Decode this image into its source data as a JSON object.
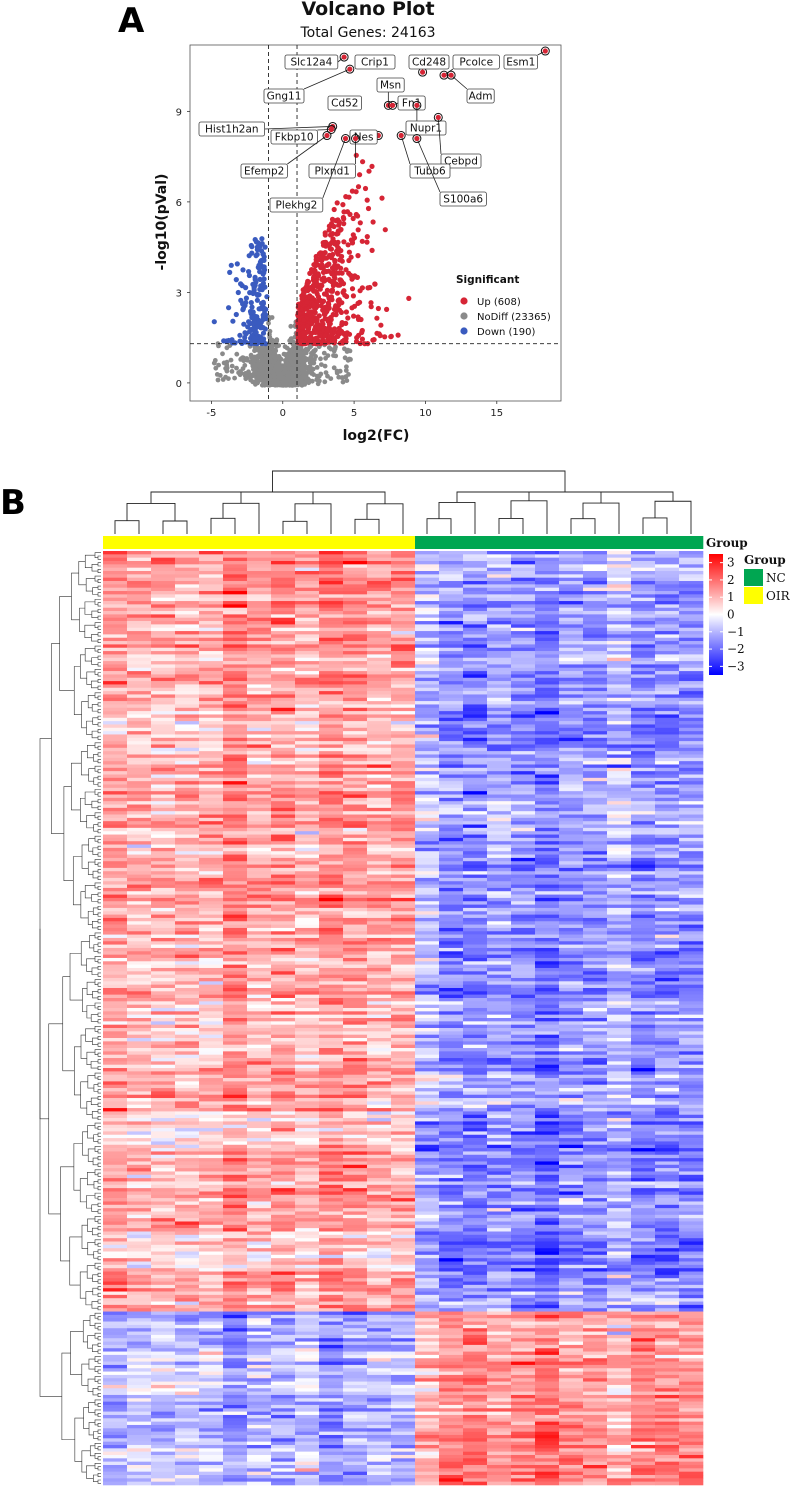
{
  "figure": {
    "panel_a_label": "A",
    "panel_b_label": "B"
  },
  "colors": {
    "up": "#d62535",
    "nodiff": "#8a8a8a",
    "down": "#3a5bbf",
    "nc": "#00a651",
    "oir": "#ffff00",
    "heat_high": "#ff0000",
    "heat_mid": "#ffffff",
    "heat_low": "#0000ff"
  },
  "chart_data": [
    {
      "type": "scatter",
      "title": "Volcano Plot",
      "subtitle": "Total Genes: 24163",
      "xlabel": "log2(FC)",
      "ylabel": "-log10(pVal)",
      "xlim": [
        -6.5,
        19.5
      ],
      "ylim": [
        -0.6,
        11.2
      ],
      "xticks": [
        -5,
        0,
        5,
        10,
        15
      ],
      "yticks": [
        0,
        3,
        6,
        9
      ],
      "thresholds": {
        "log2fc": [
          -1,
          1
        ],
        "neg_log10_p": 1.3
      },
      "legend": {
        "title": "Significant",
        "position": "right",
        "entries": [
          {
            "key": "up",
            "label": "Up (608)"
          },
          {
            "key": "nodiff",
            "label": "NoDiff (23365)"
          },
          {
            "key": "down",
            "label": "Down (190)"
          }
        ]
      },
      "series_counts": {
        "up": 608,
        "nodiff": 23365,
        "down": 190
      },
      "labeled_genes": [
        {
          "gene": "Esm1",
          "x": 18.4,
          "y": 11.0
        },
        {
          "gene": "Slc12a4",
          "x": 4.3,
          "y": 10.8
        },
        {
          "gene": "Crip1",
          "x": 5.8,
          "y": 10.7
        },
        {
          "gene": "Cd248",
          "x": 9.8,
          "y": 10.3
        },
        {
          "gene": "Pcolce",
          "x": 11.3,
          "y": 10.2
        },
        {
          "gene": "Adm",
          "x": 11.8,
          "y": 10.2
        },
        {
          "gene": "Gng11",
          "x": 4.7,
          "y": 10.4
        },
        {
          "gene": "Msn",
          "x": 7.4,
          "y": 9.2
        },
        {
          "gene": "Fn1",
          "x": 7.7,
          "y": 9.2
        },
        {
          "gene": "Cd52",
          "x": 5.0,
          "y": 9.2
        },
        {
          "gene": "Nupr1",
          "x": 9.4,
          "y": 9.2
        },
        {
          "gene": "Hist1h2an",
          "x": 3.5,
          "y": 8.5
        },
        {
          "gene": "Fkbp10",
          "x": 3.4,
          "y": 8.4
        },
        {
          "gene": "Efemp2",
          "x": 3.1,
          "y": 8.2
        },
        {
          "gene": "Nes",
          "x": 6.7,
          "y": 8.2
        },
        {
          "gene": "Cebpd",
          "x": 10.9,
          "y": 8.8
        },
        {
          "gene": "Plxnd1",
          "x": 5.1,
          "y": 8.1
        },
        {
          "gene": "Tubb6",
          "x": 8.3,
          "y": 8.2
        },
        {
          "gene": "S100a6",
          "x": 9.4,
          "y": 8.1
        },
        {
          "gene": "Plekhg2",
          "x": 4.4,
          "y": 8.1
        }
      ]
    },
    {
      "type": "heatmap",
      "legend_title": "Group",
      "groups": [
        {
          "key": "nc",
          "label": "NC"
        },
        {
          "key": "oir",
          "label": "OIR"
        }
      ],
      "column_annotation_title": "Group",
      "column_groups": [
        "OIR",
        "OIR",
        "OIR",
        "OIR",
        "OIR",
        "OIR",
        "OIR",
        "OIR",
        "OIR",
        "OIR",
        "OIR",
        "OIR",
        "OIR",
        "NC",
        "NC",
        "NC",
        "NC",
        "NC",
        "NC",
        "NC",
        "NC",
        "NC",
        "NC",
        "NC",
        "NC"
      ],
      "n_columns": 25,
      "n_rows": 280,
      "scale_range": [
        -3.5,
        3.5
      ],
      "scale_ticks": [
        "3",
        "2",
        "1",
        "0",
        "−1",
        "−2",
        "−3"
      ],
      "row_blocks": [
        {
          "rows": [
            0,
            228
          ],
          "oir_mean": 1.3,
          "nc_mean": -1.3
        },
        {
          "rows": [
            228,
            280
          ],
          "oir_mean": -1.2,
          "nc_mean": 1.3
        }
      ]
    }
  ]
}
